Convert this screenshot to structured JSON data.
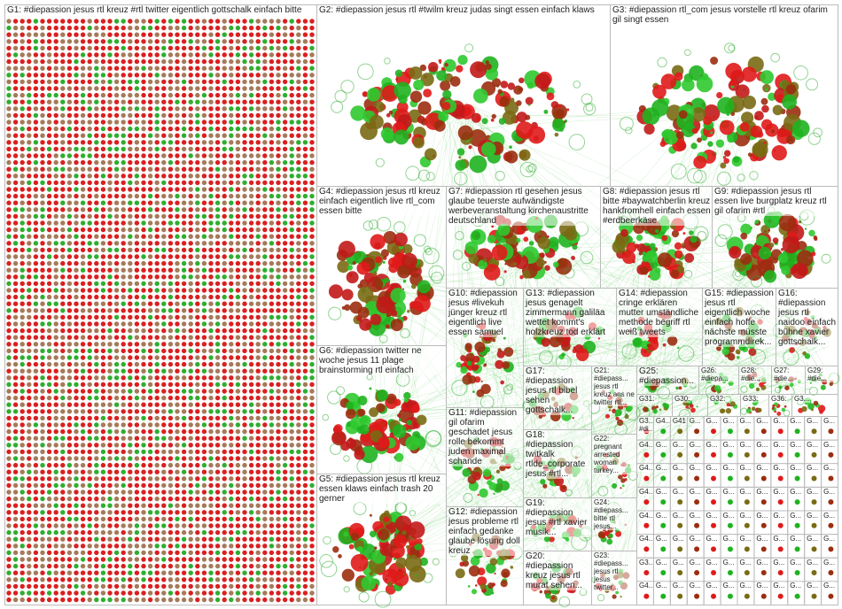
{
  "groups": [
    {
      "label": "G1: #diepassion jesus rtl kreuz #rtl twitter eigentlich gottschalk einfach bitte"
    },
    {
      "label": "G2: #diepassion jesus rtl #twilm kreuz judas singt essen einfach klaws"
    },
    {
      "label": "G3: #diepassion rtl_com jesus vorstelle rtl kreuz ofarim gil singt essen"
    },
    {
      "label": "G4: #diepassion jesus rtl kreuz einfach eigentlich live rtl_com essen bitte"
    },
    {
      "label": "G7: #diepassion rtl gesehen jesus glaube teuerste aufwändigste werbeveranstaltung kirchenaustritte deutschland"
    },
    {
      "label": "G8: #diepassion jesus rtl bitte #baywatchberlin kreuz hankfromhell einfach essen #erdbeerkäse"
    },
    {
      "label": "G9: #diepassion jesus rtl essen live burgplatz kreuz rtl gil ofarim #rtl"
    },
    {
      "label": "G10: #diepassion jesus #livekuh jünger kreuz rtl eigentlich live essen samuel"
    },
    {
      "label": "G13: #diepassion jesus genagelt zimmermann galiläa wettet kommt's holzkreuz tod erklärt"
    },
    {
      "label": "G14: #diepassion cringe erklären mutter umständliche methode begriff rtl weiß tweets"
    },
    {
      "label": "G15: #diepassion jesus rtl eigentlich woche einfach hoffe nächste müsste programmdirek..."
    },
    {
      "label": "G16: #diepassion jesus rtl naidoo einfach bühne xavier gottschalk..."
    },
    {
      "label": "G6: #diepassion twitter ne woche jesus 11 plage brainstorming rtl einfach"
    },
    {
      "label": "G5: #diepassion jesus rtl kreuz essen klaws einfach trash 20 gerner"
    },
    {
      "label": "G11: #diepassion gil ofarim geschadet jesus rolle bekommt juden maximal schande"
    },
    {
      "label": "G12: #diepassion jesus probleme rtl einfach gedanke glaube lösung doll kreuz"
    },
    {
      "label": "G17: #diepassion jesus rtl bibel sehen gottschalk..."
    },
    {
      "label": "G18: #diepassion twitkalk rtlde_corporate jesus #rtl..."
    },
    {
      "label": "G19: #diepassion jesus #rtl xavier musik..."
    },
    {
      "label": "G20: #diepassion kreuz jesus rtl murat sehen..."
    },
    {
      "label": "G21: #diepass... jesus rtl kreuz ans ne twitter rtl..."
    },
    {
      "label": "G22: pregnant arrested woman turkey..."
    },
    {
      "label": "G24: #diepass... bitte rtl jesus..."
    },
    {
      "label": "G23: #diepass... jesus rtl jesus twitter..."
    },
    {
      "label": "G25: #diepassion..."
    },
    {
      "label": "G26: #diepa..."
    },
    {
      "label": "G28: #die..."
    },
    {
      "label": "G27: #die..."
    },
    {
      "label": "G29: #die..."
    },
    {
      "label": "G31:"
    },
    {
      "label": "G30:"
    },
    {
      "label": "G32:"
    },
    {
      "label": "G33:"
    },
    {
      "label": "G36:"
    },
    {
      "label": "G3..."
    }
  ],
  "small_labels": [
    "G3... #di...",
    "G4...",
    "G41",
    "G...",
    "G...",
    "G...",
    "G...",
    "G...",
    "G...",
    "G...",
    "G...",
    "G...",
    "G4...",
    "G...",
    "G...",
    "G...",
    "G...",
    "G...",
    "G...",
    "G...",
    "G...",
    "G...",
    "G...",
    "G...",
    "G4...",
    "G...",
    "G...",
    "G...",
    "G...",
    "G...",
    "G...",
    "G...",
    "G...",
    "G...",
    "G...",
    "G...",
    "G4...",
    "G...",
    "G...",
    "G...",
    "G...",
    "G...",
    "G...",
    "G...",
    "G...",
    "G...",
    "G...",
    "G...",
    "G4...",
    "G...",
    "G...",
    "G...",
    "G...",
    "G...",
    "G...",
    "G...",
    "G...",
    "G...",
    "G...",
    "G...",
    "G4...",
    "G...",
    "G...",
    "G...",
    "G...",
    "G...",
    "G...",
    "G...",
    "G...",
    "G...",
    "G...",
    "G...",
    "G3...",
    "G...",
    "G...",
    "G...",
    "G...",
    "G...",
    "G...",
    "G...",
    "G...",
    "G...",
    "G...",
    "G...",
    "G4...",
    "G...",
    "G...",
    "G...",
    "G...",
    "G...",
    "G...",
    "G...",
    "G...",
    "G...",
    "G...",
    "G..."
  ]
}
